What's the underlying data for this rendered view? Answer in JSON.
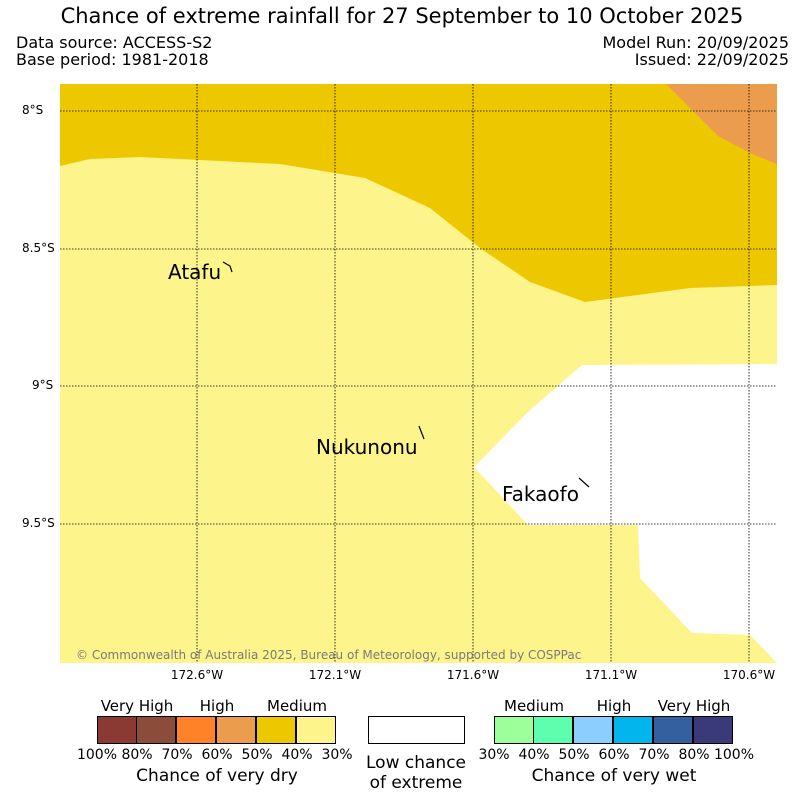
{
  "title": "Chance of extreme rainfall for 27 September to 10 October 2025",
  "data_source": "Data source: ACCESS-S2",
  "base_period": "Base period: 1981-2018",
  "model_run": "Model Run: 20/09/2025",
  "issued": "Issued: 22/09/2025",
  "map": {
    "lat_ticks": [
      "8°S",
      "8.5°S",
      "9°S",
      "9.5°S"
    ],
    "lon_ticks": [
      "172.6°W",
      "172.1°W",
      "171.6°W",
      "171.1°W",
      "170.6°W"
    ],
    "places": [
      "Atafu",
      "Nukunonu",
      "Fakaofo"
    ],
    "copyright": "© Commonwealth of Australia 2025, Bureau of Meteorology, supported by COSPPac",
    "colors": {
      "medium_dry_light": "#fdf48c",
      "medium_dry_dark": "#edc800",
      "high_dry": "#eb9c4c",
      "low": "#ffffff"
    }
  },
  "legend": {
    "dry": {
      "headings": [
        "Very High",
        "High",
        "Medium"
      ],
      "colors": [
        "#8b3a33",
        "#8b4c3a",
        "#ff8229",
        "#eb9c4c",
        "#edc800",
        "#fdf48c"
      ],
      "ticks": [
        "100%",
        "80%",
        "70%",
        "60%",
        "50%",
        "40%",
        "30%"
      ],
      "title": "Chance of very dry"
    },
    "low": {
      "line1": "Low chance",
      "line2": "of extreme"
    },
    "wet": {
      "headings": [
        "Medium",
        "High",
        "Very High"
      ],
      "colors": [
        "#9cff9a",
        "#5dffaf",
        "#8ccfff",
        "#00b6ec",
        "#34609f",
        "#3a3a7a"
      ],
      "ticks": [
        "30%",
        "40%",
        "50%",
        "60%",
        "70%",
        "80%",
        "100%"
      ],
      "title": "Chance of very wet"
    }
  }
}
